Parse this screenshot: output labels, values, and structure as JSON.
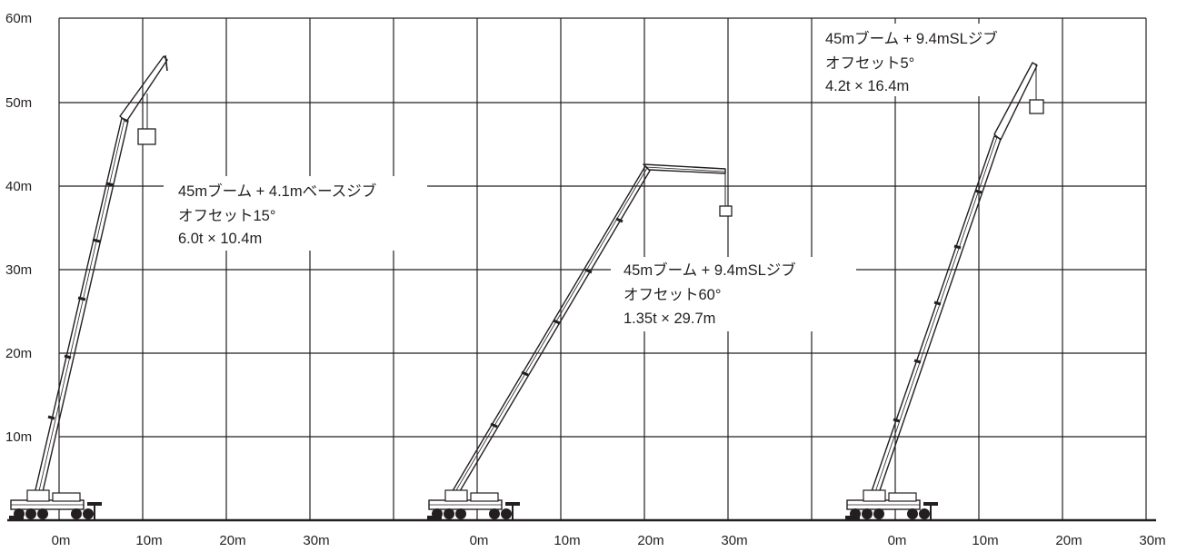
{
  "y_axis_labels": [
    "60m",
    "50m",
    "40m",
    "30m",
    "20m",
    "10m"
  ],
  "panels": [
    {
      "x_labels": [
        "0m",
        "10m",
        "20m",
        "30m"
      ],
      "configuration": {
        "line1": "45mブーム + 4.1mベースジブ",
        "line2": "オフセット15°",
        "line3": "6.0t × 10.4m"
      },
      "boom_length_m": 45,
      "jib_length_m": 4.1,
      "offset_deg": 15,
      "load_t": 6.0,
      "working_radius_m": 10.4
    },
    {
      "x_labels": [
        "0m",
        "10m",
        "20m",
        "30m"
      ],
      "configuration": {
        "line1": "45mブーム + 9.4mSLジブ",
        "line2": "オフセット60°",
        "line3": "1.35t × 29.7m"
      },
      "boom_length_m": 45,
      "jib_length_m": 9.4,
      "offset_deg": 60,
      "load_t": 1.35,
      "working_radius_m": 29.7
    },
    {
      "x_labels": [
        "0m",
        "10m",
        "20m",
        "30m"
      ],
      "configuration": {
        "line1": "45mブーム + 9.4mSLジブ",
        "line2": "オフセット5°",
        "line3": "4.2t × 16.4m"
      },
      "boom_length_m": 45,
      "jib_length_m": 9.4,
      "offset_deg": 5,
      "load_t": 4.2,
      "working_radius_m": 16.4
    }
  ],
  "colors": {
    "ink": "#231f20",
    "background": "#ffffff"
  }
}
